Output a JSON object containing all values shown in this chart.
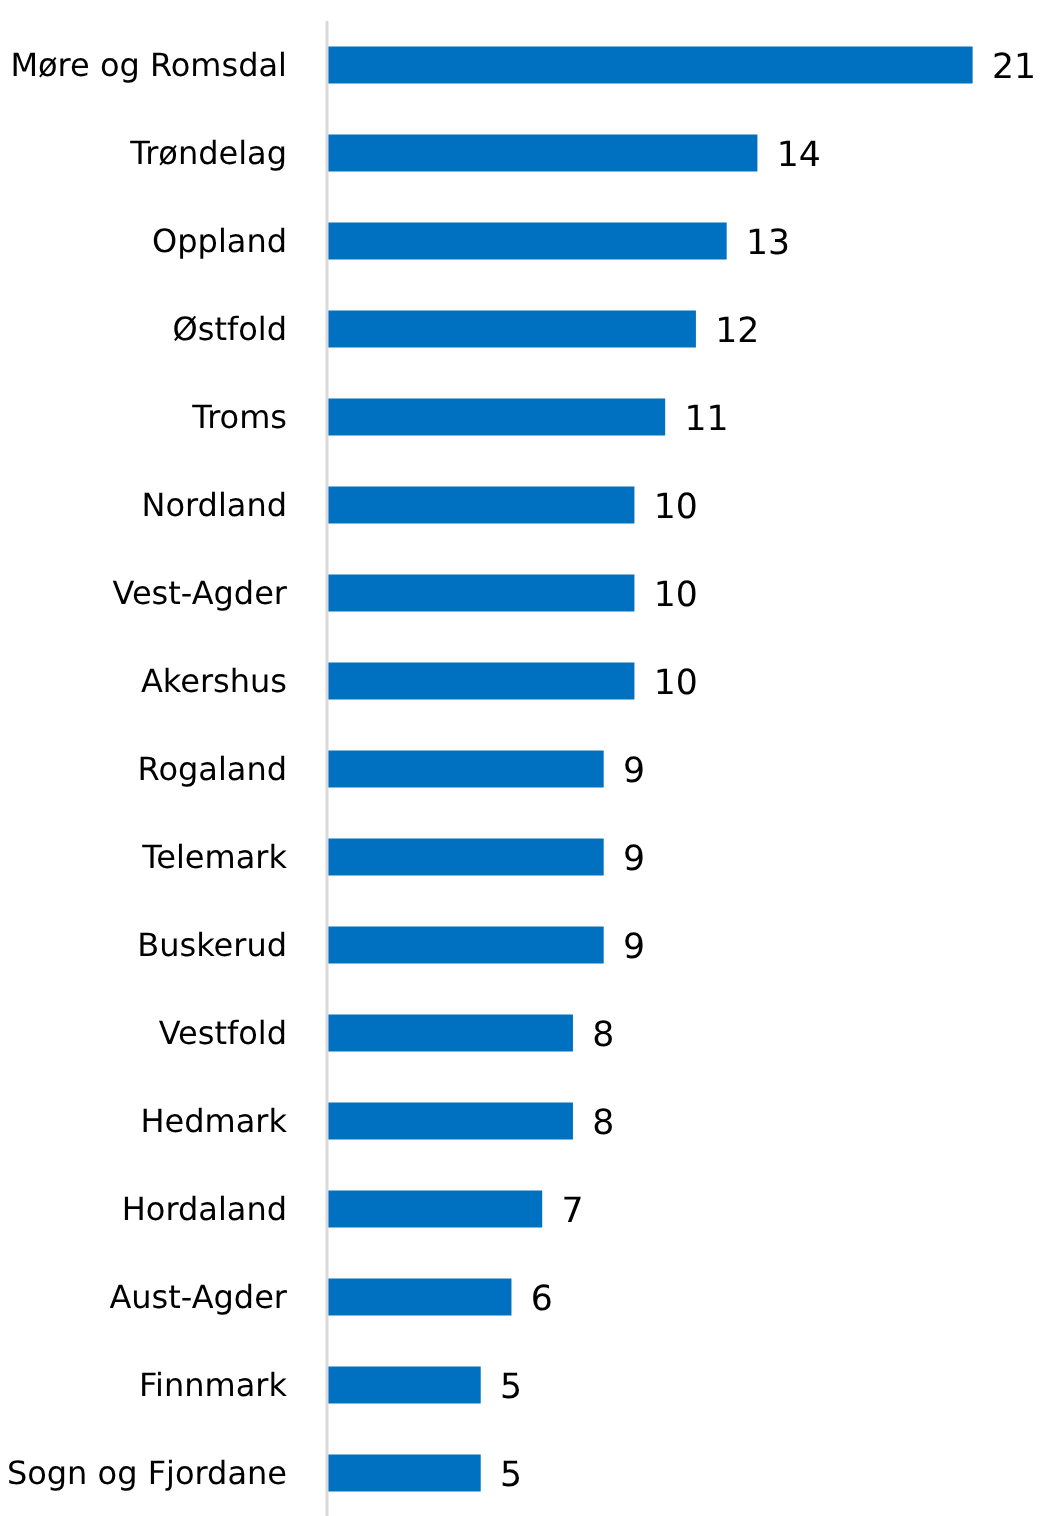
{
  "chart_data": {
    "type": "bar",
    "orientation": "horizontal",
    "categories": [
      "Møre og Romsdal",
      "Trøndelag",
      "Oppland",
      "Østfold",
      "Troms",
      "Nordland",
      "Vest-Agder",
      "Akershus",
      "Rogaland",
      "Telemark",
      "Buskerud",
      "Vestfold",
      "Hedmark",
      "Hordaland",
      "Aust-Agder",
      "Finnmark",
      "Sogn og Fjordane"
    ],
    "values": [
      21,
      14,
      13,
      12,
      11,
      10,
      10,
      10,
      9,
      9,
      9,
      8,
      8,
      7,
      6,
      5,
      5
    ],
    "color": "#0070c0",
    "data_labels": true,
    "tick_labels": "y"
  }
}
